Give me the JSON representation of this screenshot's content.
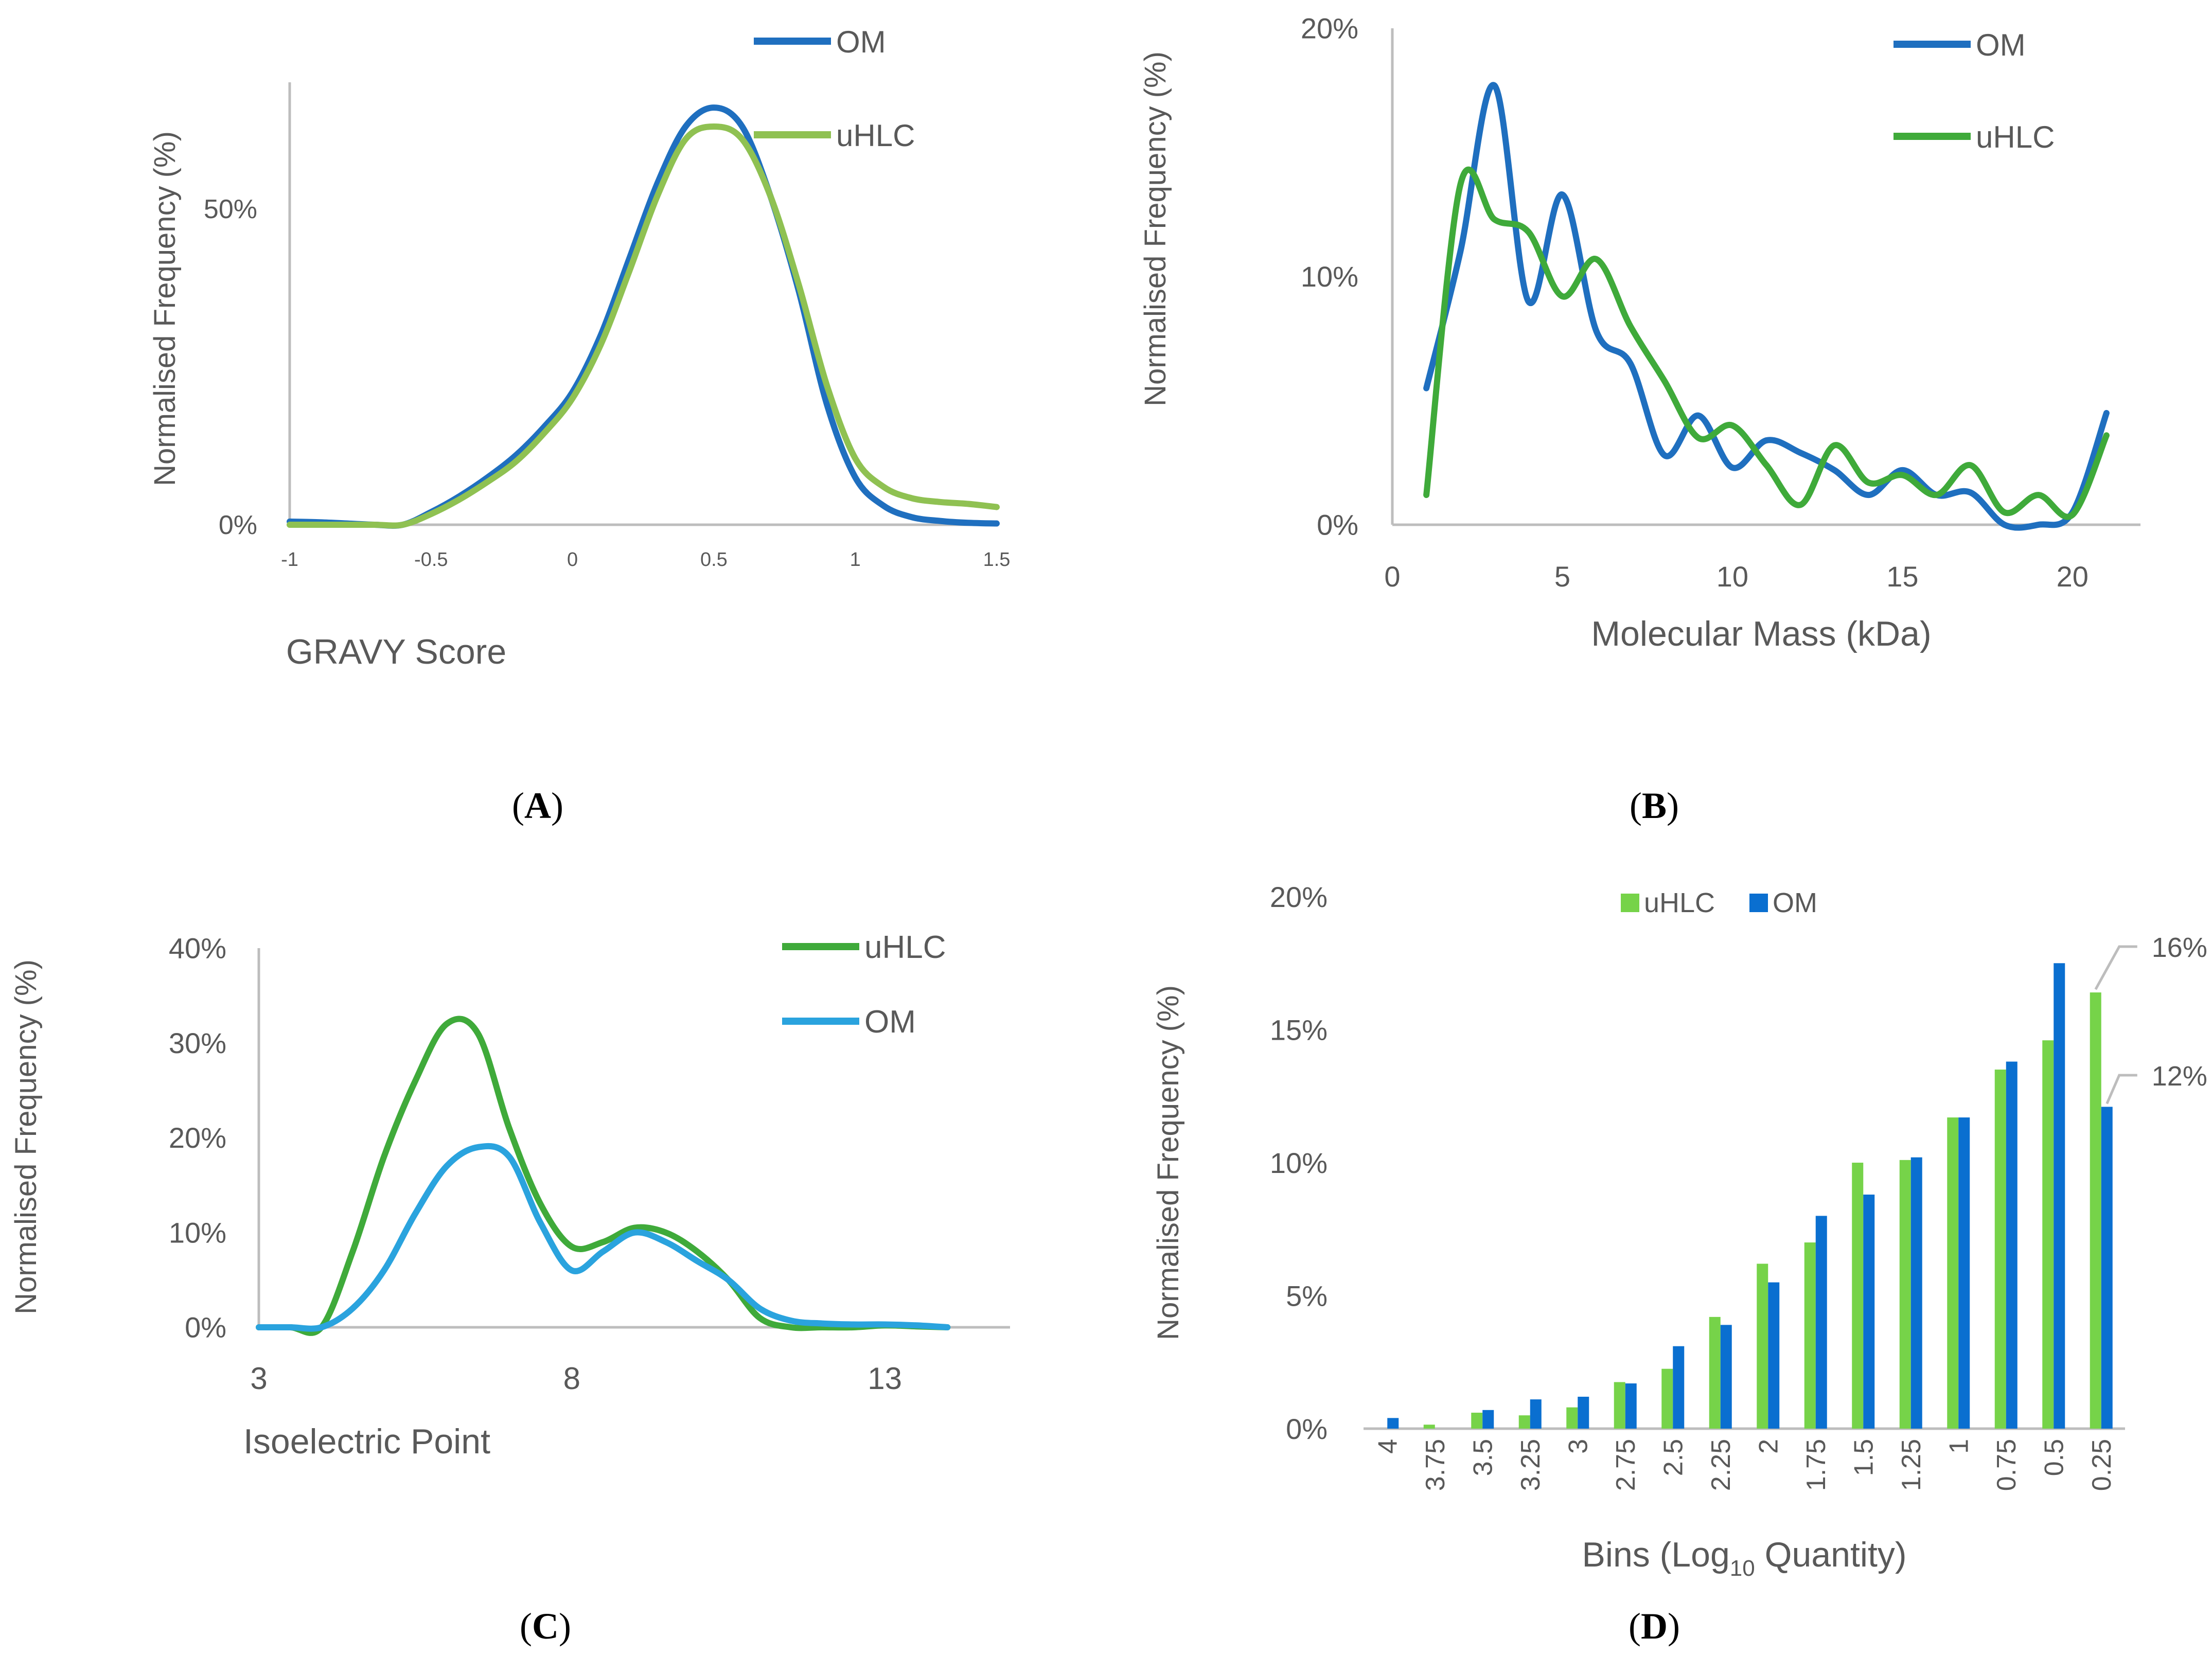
{
  "colors": {
    "om_blue": "#1f6fbf",
    "uhlc_lightgreen": "#8fc152",
    "uhlc_green": "#3faa3a",
    "om_cyan": "#2aa3de",
    "bar_green": "#76d349",
    "bar_blue": "#0a6fd0",
    "axis": "#bdbdbd",
    "text": "#595959"
  },
  "chart_data": [
    {
      "panel": "A",
      "type": "line",
      "panel_label": "(A)",
      "xlabel": "GRAVY Score",
      "ylabel": "Normalised Frequency (%)",
      "xlim": [
        -1,
        1.5
      ],
      "ylim": [
        0,
        0.7
      ],
      "xticks": [
        "-1",
        "-0.5",
        "0",
        "0.5",
        "1",
        "1.5"
      ],
      "xtick_values": [
        -1,
        -0.5,
        0,
        0.5,
        1,
        1.5
      ],
      "yticks": [
        "0%",
        "50%"
      ],
      "ytick_values": [
        0,
        0.5
      ],
      "legend": [
        "OM",
        "uHLC"
      ],
      "series": [
        {
          "name": "OM",
          "color": "#1f6fbf",
          "x": [
            -1,
            -0.9,
            -0.8,
            -0.7,
            -0.6,
            -0.5,
            -0.4,
            -0.3,
            -0.2,
            -0.1,
            0,
            0.1,
            0.2,
            0.3,
            0.4,
            0.5,
            0.6,
            0.7,
            0.8,
            0.9,
            1,
            1.1,
            1.2,
            1.3,
            1.4,
            1.5
          ],
          "values": [
            0.005,
            0.004,
            0.002,
            0.0,
            0.0,
            0.02,
            0.045,
            0.075,
            0.11,
            0.155,
            0.21,
            0.3,
            0.42,
            0.54,
            0.63,
            0.66,
            0.63,
            0.52,
            0.37,
            0.19,
            0.075,
            0.03,
            0.012,
            0.006,
            0.003,
            0.002
          ]
        },
        {
          "name": "uHLC",
          "color": "#8fc152",
          "x": [
            -1,
            -0.9,
            -0.8,
            -0.7,
            -0.6,
            -0.5,
            -0.4,
            -0.3,
            -0.2,
            -0.1,
            0,
            0.1,
            0.2,
            0.3,
            0.4,
            0.5,
            0.6,
            0.7,
            0.8,
            0.9,
            1,
            1.1,
            1.2,
            1.3,
            1.4,
            1.5
          ],
          "values": [
            0.0,
            0.0,
            0.0,
            0.0,
            0.0,
            0.017,
            0.04,
            0.068,
            0.1,
            0.145,
            0.2,
            0.285,
            0.4,
            0.52,
            0.61,
            0.63,
            0.61,
            0.52,
            0.38,
            0.22,
            0.105,
            0.06,
            0.042,
            0.036,
            0.033,
            0.028
          ]
        }
      ]
    },
    {
      "panel": "B",
      "type": "line",
      "panel_label": "(B)",
      "xlabel": "Molecular Mass (kDa)",
      "ylabel": "Normalised Frequency (%)",
      "xlim": [
        0,
        22
      ],
      "ylim": [
        0,
        0.2
      ],
      "xticks": [
        "0",
        "5",
        "10",
        "15",
        "20"
      ],
      "xtick_values": [
        0,
        5,
        10,
        15,
        20
      ],
      "yticks": [
        "0%",
        "10%",
        "20%"
      ],
      "ytick_values": [
        0,
        0.1,
        0.2
      ],
      "legend": [
        "OM",
        "uHLC"
      ],
      "series": [
        {
          "name": "OM",
          "color": "#1f6fbf",
          "x": [
            1,
            2,
            3,
            4,
            5,
            6,
            7,
            8,
            9,
            10,
            11,
            12,
            13,
            14,
            15,
            16,
            17,
            18,
            19,
            20,
            21
          ],
          "values": [
            0.055,
            0.11,
            0.177,
            0.09,
            0.133,
            0.078,
            0.065,
            0.028,
            0.044,
            0.023,
            0.034,
            0.029,
            0.022,
            0.012,
            0.022,
            0.012,
            0.013,
            0.0,
            0.0,
            0.005,
            0.045
          ]
        },
        {
          "name": "uHLC",
          "color": "#3faa3a",
          "x": [
            1,
            2,
            3,
            4,
            5,
            6,
            7,
            8,
            9,
            10,
            11,
            12,
            13,
            14,
            15,
            16,
            17,
            18,
            19,
            20,
            21
          ],
          "values": [
            0.012,
            0.137,
            0.123,
            0.118,
            0.092,
            0.107,
            0.08,
            0.058,
            0.035,
            0.04,
            0.024,
            0.008,
            0.032,
            0.017,
            0.02,
            0.012,
            0.024,
            0.005,
            0.012,
            0.004,
            0.036
          ]
        }
      ]
    },
    {
      "panel": "C",
      "type": "line",
      "panel_label": "(C)",
      "xlabel": "Isoelectric Point",
      "ylabel": "Normalised Frequency (%)",
      "xlim": [
        3,
        15
      ],
      "ylim": [
        0,
        0.4
      ],
      "xticks": [
        "3",
        "8",
        "13"
      ],
      "xtick_values": [
        3,
        8,
        13
      ],
      "yticks": [
        "0%",
        "10%",
        "20%",
        "30%",
        "40%"
      ],
      "ytick_values": [
        0,
        0.1,
        0.2,
        0.3,
        0.4
      ],
      "legend": [
        "uHLC",
        "OM"
      ],
      "series": [
        {
          "name": "uHLC",
          "color": "#3faa3a",
          "x": [
            3,
            3.5,
            4,
            4.5,
            5,
            5.5,
            6,
            6.5,
            7,
            7.5,
            8,
            8.5,
            9,
            9.5,
            10,
            10.5,
            11,
            11.5,
            12,
            12.5,
            13,
            13.5,
            14
          ],
          "values": [
            0.0,
            0.0,
            0.0,
            0.08,
            0.18,
            0.26,
            0.32,
            0.31,
            0.21,
            0.13,
            0.085,
            0.09,
            0.105,
            0.1,
            0.08,
            0.05,
            0.01,
            0.0,
            0.0,
            0.0,
            0.002,
            0.001,
            0.0
          ]
        },
        {
          "name": "OM",
          "color": "#2aa3de",
          "x": [
            3,
            3.5,
            4,
            4.5,
            5,
            5.5,
            6,
            6.5,
            7,
            7.5,
            8,
            8.5,
            9,
            9.5,
            10,
            10.5,
            11,
            11.5,
            12,
            12.5,
            13,
            13.5,
            14
          ],
          "values": [
            0.0,
            0.0,
            0.0,
            0.02,
            0.06,
            0.12,
            0.17,
            0.19,
            0.18,
            0.11,
            0.06,
            0.08,
            0.1,
            0.09,
            0.07,
            0.05,
            0.02,
            0.007,
            0.004,
            0.003,
            0.003,
            0.002,
            0.0
          ]
        }
      ]
    },
    {
      "panel": "D",
      "type": "bar",
      "panel_label": "(D)",
      "xlabel": "Bins (Log",
      "xlabel_sub": "10",
      "xlabel_tail": " Quantity)",
      "ylabel": "Normalised Frequency (%)",
      "ylim": [
        0,
        0.2
      ],
      "yticks": [
        "0%",
        "5%",
        "10%",
        "15%",
        "20%"
      ],
      "ytick_values": [
        0,
        0.05,
        0.1,
        0.15,
        0.2
      ],
      "legend": [
        "uHLC",
        "OM"
      ],
      "categories": [
        "4",
        "3.75",
        "3.5",
        "3.25",
        "3",
        "2.75",
        "2.5",
        "2.25",
        "2",
        "1.75",
        "1.5",
        "1.25",
        "1",
        "0.75",
        "0.5",
        "0.25"
      ],
      "series": [
        {
          "name": "uHLC",
          "color": "#76d349",
          "values": [
            0.0,
            0.0015,
            0.006,
            0.005,
            0.008,
            0.0175,
            0.0225,
            0.042,
            0.062,
            0.07,
            0.1,
            0.101,
            0.117,
            0.135,
            0.146,
            0.164
          ]
        },
        {
          "name": "OM",
          "color": "#0a6fd0",
          "values": [
            0.004,
            0.0,
            0.007,
            0.011,
            0.012,
            0.017,
            0.031,
            0.039,
            0.055,
            0.08,
            0.088,
            0.102,
            0.117,
            0.138,
            0.175,
            0.121
          ]
        }
      ],
      "annotations": [
        {
          "text": "16%",
          "series": "uHLC",
          "category": "0.25"
        },
        {
          "text": "12%",
          "series": "OM",
          "category": "0.25"
        }
      ]
    }
  ]
}
